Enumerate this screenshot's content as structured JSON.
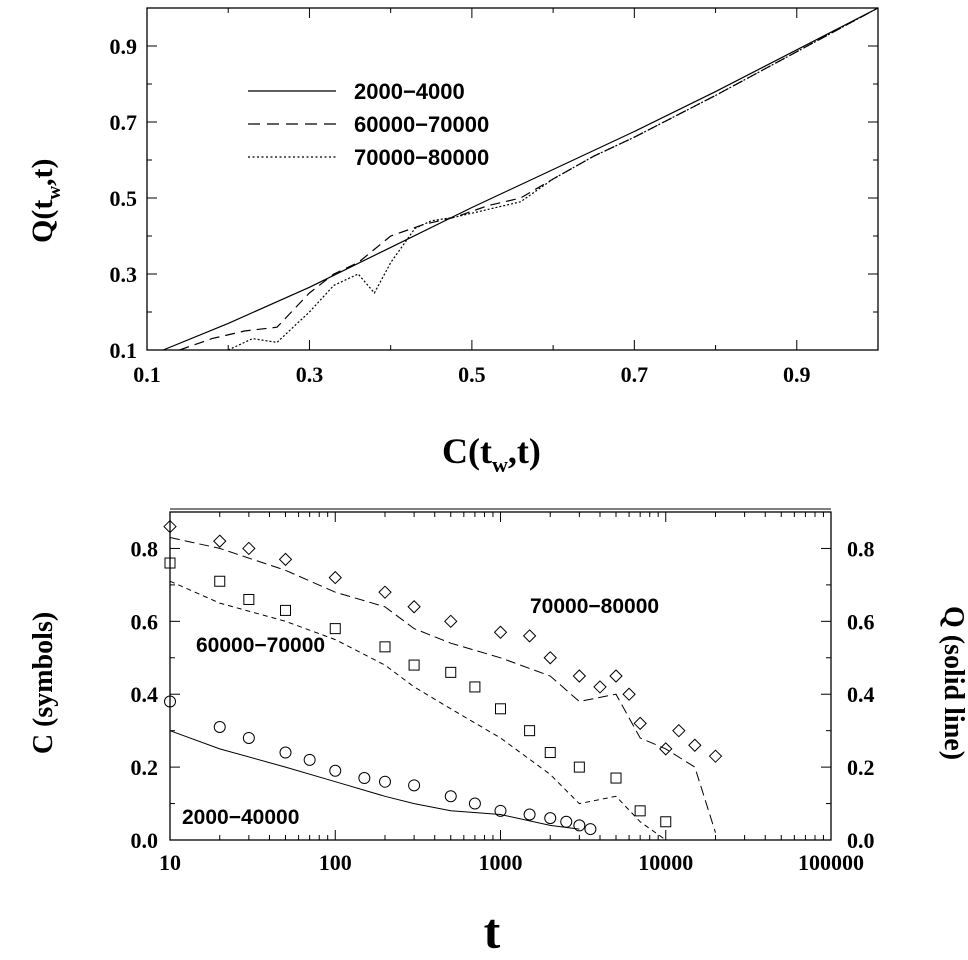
{
  "chart_data": [
    {
      "type": "line",
      "xlabel": "C(t",
      "xlabel_sub": "w",
      "xlabel_end": ",t)",
      "ylabel": "Q(t",
      "ylabel_sub": "w",
      "ylabel_end": ",t)",
      "xlim": [
        0.1,
        1.0
      ],
      "ylim": [
        0.1,
        1.0
      ],
      "xticks": [
        "0.1",
        "0.3",
        "0.5",
        "0.7",
        "0.9"
      ],
      "yticks": [
        "0.1",
        "0.3",
        "0.5",
        "0.7",
        "0.9"
      ],
      "legend_position": "top-left",
      "series": [
        {
          "name": "2000−4000",
          "style": "solid",
          "x": [
            0.12,
            0.2,
            0.3,
            0.4,
            0.5,
            0.6,
            0.7,
            0.8,
            0.9,
            1.0
          ],
          "y": [
            0.1,
            0.17,
            0.265,
            0.37,
            0.475,
            0.575,
            0.675,
            0.78,
            0.89,
            1.0
          ]
        },
        {
          "name": "60000−70000",
          "style": "dashed",
          "x": [
            0.14,
            0.18,
            0.22,
            0.26,
            0.3,
            0.33,
            0.36,
            0.4,
            0.44,
            0.48,
            0.52,
            0.56,
            0.6,
            0.65,
            0.7,
            0.8,
            0.9,
            1.0
          ],
          "y": [
            0.1,
            0.13,
            0.15,
            0.16,
            0.25,
            0.3,
            0.33,
            0.4,
            0.43,
            0.45,
            0.48,
            0.5,
            0.55,
            0.61,
            0.66,
            0.77,
            0.885,
            1.0
          ]
        },
        {
          "name": "70000−80000",
          "style": "dotted",
          "x": [
            0.2,
            0.23,
            0.26,
            0.28,
            0.3,
            0.33,
            0.36,
            0.38,
            0.4,
            0.43,
            0.45,
            0.48,
            0.52,
            0.56,
            0.6,
            0.65,
            0.7,
            0.8,
            0.9,
            1.0
          ],
          "y": [
            0.1,
            0.13,
            0.12,
            0.16,
            0.2,
            0.27,
            0.3,
            0.25,
            0.33,
            0.42,
            0.44,
            0.45,
            0.47,
            0.49,
            0.55,
            0.61,
            0.66,
            0.77,
            0.885,
            1.0
          ]
        }
      ]
    },
    {
      "type": "scatter",
      "xlabel": "t",
      "ylabel": "C (symbols)",
      "ylabel_right": "Q (solid line)",
      "xscale": "log",
      "xlim": [
        10,
        100000
      ],
      "ylim": [
        0.0,
        0.9
      ],
      "xticks": [
        "10",
        "100",
        "1000",
        "10000",
        "100000"
      ],
      "yticks": [
        "0.0",
        "0.2",
        "0.4",
        "0.6",
        "0.8"
      ],
      "yticks_right": [
        "0.0",
        "0.2",
        "0.4",
        "0.6",
        "0.8"
      ],
      "annotations": [
        "70000−80000",
        "60000−70000",
        "2000−40000"
      ],
      "series": [
        {
          "name": "70000−80000",
          "marker": "diamond",
          "C_x": [
            10,
            20,
            30,
            50,
            100,
            200,
            300,
            500,
            1000,
            1500,
            2000,
            3000,
            4000,
            5000,
            6000,
            7000,
            10000,
            12000,
            15000,
            20000
          ],
          "C_y": [
            0.86,
            0.82,
            0.8,
            0.77,
            0.72,
            0.68,
            0.64,
            0.6,
            0.57,
            0.56,
            0.5,
            0.45,
            0.42,
            0.45,
            0.4,
            0.32,
            0.25,
            0.3,
            0.26,
            0.23
          ],
          "Q_x": [
            10,
            20,
            50,
            100,
            200,
            300,
            500,
            1000,
            2000,
            3000,
            5000,
            7000,
            10000,
            15000,
            20000
          ],
          "Q_y": [
            0.83,
            0.8,
            0.74,
            0.68,
            0.64,
            0.58,
            0.54,
            0.5,
            0.45,
            0.38,
            0.4,
            0.28,
            0.25,
            0.2,
            0.02
          ]
        },
        {
          "name": "60000−70000",
          "marker": "square",
          "C_x": [
            10,
            20,
            30,
            50,
            100,
            200,
            300,
            500,
            700,
            1000,
            1500,
            2000,
            3000,
            5000,
            7000,
            10000
          ],
          "C_y": [
            0.76,
            0.71,
            0.66,
            0.63,
            0.58,
            0.53,
            0.48,
            0.46,
            0.42,
            0.36,
            0.3,
            0.24,
            0.2,
            0.17,
            0.08,
            0.05
          ],
          "Q_x": [
            10,
            20,
            50,
            100,
            200,
            300,
            500,
            1000,
            2000,
            3000,
            5000,
            7000,
            10000
          ],
          "Q_y": [
            0.71,
            0.65,
            0.6,
            0.55,
            0.48,
            0.42,
            0.36,
            0.28,
            0.18,
            0.1,
            0.12,
            0.05,
            0.0
          ]
        },
        {
          "name": "2000−40000",
          "marker": "circle",
          "C_x": [
            10,
            20,
            30,
            50,
            70,
            100,
            150,
            200,
            300,
            500,
            700,
            1000,
            1500,
            2000,
            2500,
            3000,
            3500
          ],
          "C_y": [
            0.38,
            0.31,
            0.28,
            0.24,
            0.22,
            0.19,
            0.17,
            0.16,
            0.15,
            0.12,
            0.1,
            0.08,
            0.07,
            0.06,
            0.05,
            0.04,
            0.03
          ],
          "Q_x": [
            10,
            20,
            50,
            100,
            200,
            300,
            500,
            1000,
            2000,
            3000
          ],
          "Q_y": [
            0.3,
            0.25,
            0.2,
            0.16,
            0.12,
            0.1,
            0.08,
            0.07,
            0.04,
            0.03
          ]
        }
      ]
    }
  ]
}
